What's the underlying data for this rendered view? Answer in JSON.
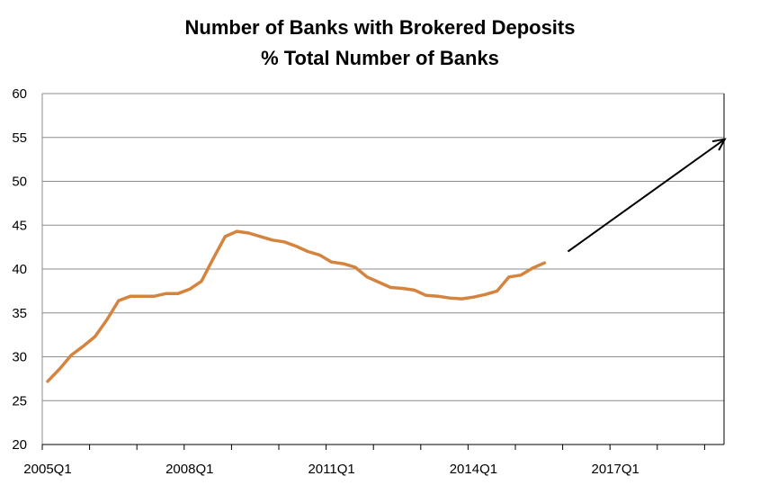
{
  "chart_data": {
    "type": "line",
    "title_line1": "Number of Banks with Brokered Deposits",
    "title_line2": "% Total Number of Banks",
    "xlabel": "",
    "ylabel": "",
    "ylim": [
      20,
      60
    ],
    "yticks": [
      20,
      25,
      30,
      35,
      40,
      45,
      50,
      55,
      60
    ],
    "x_tick_labels": [
      "2005Q1",
      "2008Q1",
      "2011Q1",
      "2014Q1",
      "2017Q1"
    ],
    "grid": true,
    "line_color": "#D4843F",
    "arrow_color": "#000000",
    "series": [
      {
        "x": [
          "2005Q1",
          "2005Q2",
          "2005Q3",
          "2005Q4",
          "2006Q1",
          "2006Q2",
          "2006Q3",
          "2006Q4",
          "2007Q1",
          "2007Q2",
          "2007Q3",
          "2007Q4",
          "2008Q1",
          "2008Q2",
          "2008Q3",
          "2008Q4",
          "2009Q1",
          "2009Q2",
          "2009Q3",
          "2009Q4",
          "2010Q1",
          "2010Q2",
          "2010Q3",
          "2010Q4",
          "2011Q1",
          "2011Q2",
          "2011Q3",
          "2011Q4",
          "2012Q1",
          "2012Q2",
          "2012Q3",
          "2012Q4",
          "2013Q1",
          "2013Q2",
          "2013Q3",
          "2013Q4",
          "2014Q1",
          "2014Q2",
          "2014Q3",
          "2014Q4",
          "2015Q1",
          "2015Q2",
          "2015Q3",
          "2015Q4"
        ],
        "values": [
          27.2,
          28.6,
          30.2,
          31.2,
          32.3,
          34.2,
          36.4,
          36.9,
          36.9,
          36.9,
          37.2,
          37.2,
          37.7,
          38.6,
          41.2,
          43.7,
          44.3,
          44.1,
          43.7,
          43.3,
          43.1,
          42.6,
          42.0,
          41.6,
          40.8,
          40.6,
          40.2,
          39.1,
          38.5,
          37.9,
          37.8,
          37.6,
          37.0,
          36.9,
          36.7,
          36.6,
          36.8,
          37.1,
          37.5,
          39.1,
          39.3,
          40.1,
          40.7,
          null
        ]
      }
    ],
    "annotation_arrow": {
      "from": [
        "2015Q4",
        42.0
      ],
      "to": [
        "2019Q4",
        54.8
      ]
    }
  }
}
